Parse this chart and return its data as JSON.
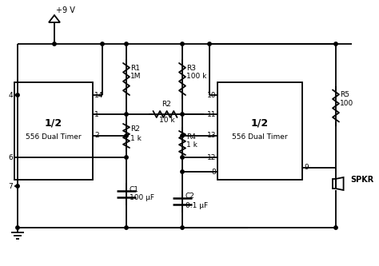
{
  "bg_color": "#ffffff",
  "line_color": "#000000",
  "figsize": [
    4.74,
    3.33
  ],
  "dpi": 100,
  "vcc_label": "+9 V",
  "ic1_label1": "1/2",
  "ic1_label2": "556 Dual Timer",
  "ic2_label1": "1/2",
  "ic2_label2": "556 Dual Timer",
  "r1_label1": "R1",
  "r1_label2": "1M",
  "r2h_label1": "R2",
  "r2h_label2": "10 k",
  "r2v_label1": "R2",
  "r2v_label2": "1 k",
  "r3_label1": "R3",
  "r3_label2": "100 k",
  "r4_label1": "R4",
  "r4_label2": "1 k",
  "r5_label1": "R5",
  "r5_label2": "100",
  "c1_label1": "C1",
  "c1_label2": "100 μF",
  "c2_label1": "C2",
  "c2_label2": "0.1 μF",
  "spkr_label": "SPKR",
  "pin_labels_ic1": [
    "4",
    "14",
    "1",
    "2",
    "6",
    "7"
  ],
  "pin_labels_ic2": [
    "10",
    "11",
    "13",
    "12",
    "8",
    "9"
  ]
}
